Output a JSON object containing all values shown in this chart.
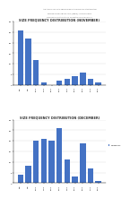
{
  "title_main": "SIZE FREQUENCY DISTRIBUTION (NOVEMBER)",
  "title_dec": "SIZE FREQUENCY DISTRIBUTION (DECEMBER)",
  "header_line1": "ANALYSIS OF RASTRELLIGER FAUGHNI IN SARANGANI",
  "header_line2": "PROTECTED SEASCAPE (SBPS), PHILIPPINES",
  "subtitle_text": "Frequency distributions of Rastrelliger faughni ?",
  "nov_categories": [
    "8.5",
    "9.5",
    "10.5",
    "11.5",
    "12.5",
    "13.5",
    "14.5",
    "15.5",
    "16.5",
    "17.5",
    "18.5"
  ],
  "nov_values": [
    26,
    22,
    12,
    1,
    0,
    2,
    3,
    4,
    6,
    3,
    1
  ],
  "dec_categories": [
    "8.5",
    "9.5",
    "10.5",
    "11.5",
    "12.5",
    "13.5",
    "14.5",
    "15.5",
    "16.5",
    "17.5",
    "18.5"
  ],
  "dec_values": [
    4,
    8,
    20,
    21,
    20,
    26,
    11,
    3,
    19,
    7,
    1
  ],
  "bar_color": "#4472C4",
  "background": "#ffffff",
  "legend_label": "Frequency",
  "nov_ylim": [
    0,
    30
  ],
  "dec_ylim": [
    0,
    30
  ],
  "nov_yticks": [
    0,
    5,
    10,
    15,
    20,
    25,
    30
  ],
  "dec_yticks": [
    0,
    5,
    10,
    15,
    20,
    25,
    30
  ]
}
